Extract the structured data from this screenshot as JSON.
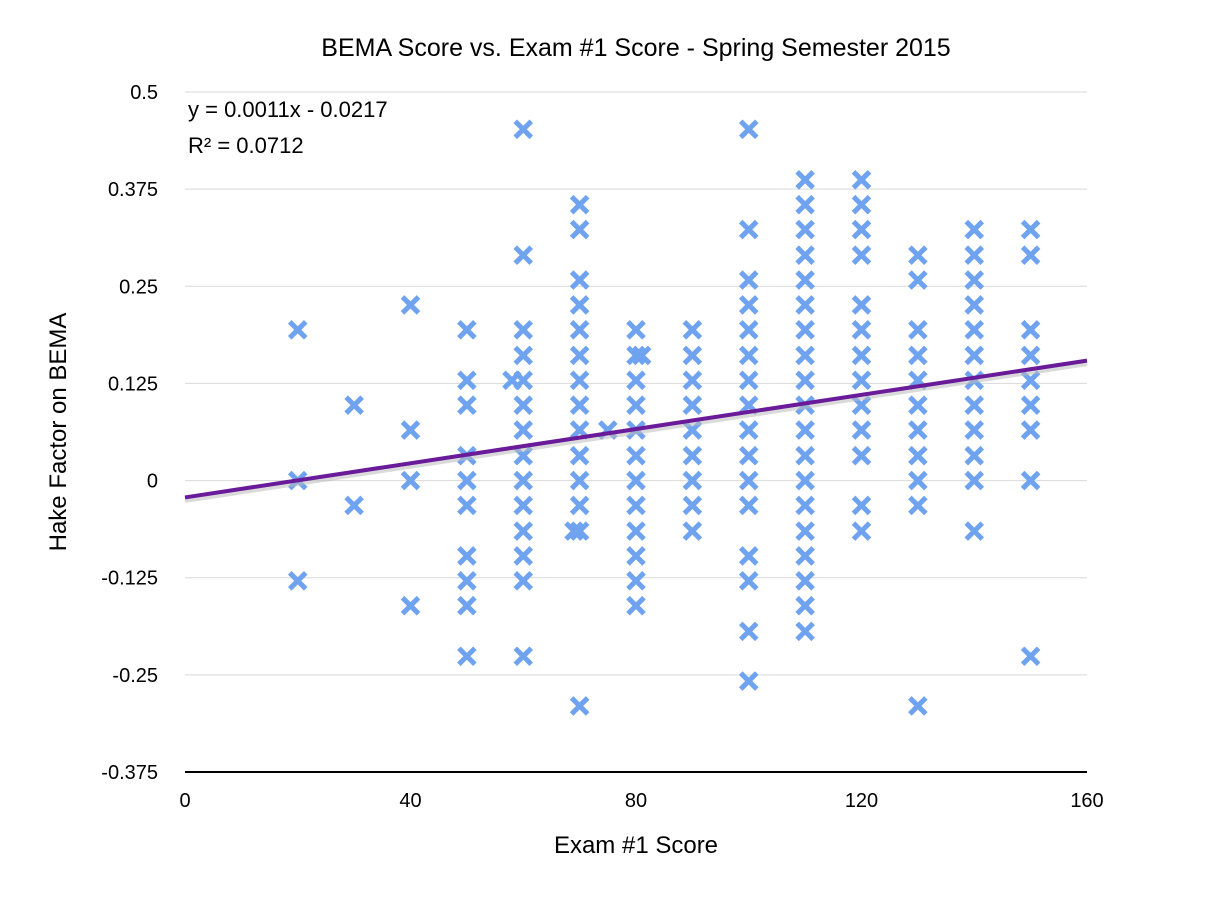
{
  "chart_data": {
    "type": "scatter",
    "title": "BEMA Score vs. Exam #1 Score - Spring Semester 2015",
    "xlabel": "Exam #1 Score",
    "ylabel": "Hake Factor on BEMA",
    "xlim": [
      0,
      160
    ],
    "ylim": [
      -0.375,
      0.5
    ],
    "x_ticks": [
      0,
      40,
      80,
      120,
      160
    ],
    "x_tick_labels": [
      "0",
      "40",
      "80",
      "120",
      "160"
    ],
    "y_ticks": [
      0.5,
      0.375,
      0.25,
      0.125,
      0,
      -0.125,
      -0.25,
      -0.375
    ],
    "y_tick_labels": [
      "0.5",
      "0.375",
      "0.25",
      "0.125",
      "0",
      "-0.125",
      "-0.25",
      "-0.375"
    ],
    "grid": "horizontal",
    "marker": "x",
    "colors": {
      "points": "#6fa3ef",
      "trendline": "#6a1b9a"
    },
    "trendline": {
      "type": "linear",
      "slope": 0.0011,
      "intercept": -0.0217,
      "equation_label": "y = 0.0011x - 0.0217",
      "r2_label": "R² = 0.0712"
    },
    "points": [
      [
        20,
        0.194
      ],
      [
        20,
        0
      ],
      [
        20,
        -0.129
      ],
      [
        30,
        0.097
      ],
      [
        30,
        -0.032
      ],
      [
        40,
        0.226
      ],
      [
        40,
        0.065
      ],
      [
        40,
        0
      ],
      [
        40,
        -0.161
      ],
      [
        50,
        0.194
      ],
      [
        50,
        0.129
      ],
      [
        50,
        0.097
      ],
      [
        50,
        0.032
      ],
      [
        50,
        0
      ],
      [
        50,
        -0.032
      ],
      [
        50,
        -0.097
      ],
      [
        50,
        -0.129
      ],
      [
        50,
        -0.161
      ],
      [
        50,
        -0.226
      ],
      [
        58,
        0.129
      ],
      [
        60,
        0.452
      ],
      [
        60,
        0.29
      ],
      [
        60,
        0.194
      ],
      [
        60,
        0.161
      ],
      [
        60,
        0.129
      ],
      [
        60,
        0.097
      ],
      [
        60,
        0.065
      ],
      [
        60,
        0.032
      ],
      [
        60,
        0
      ],
      [
        60,
        -0.032
      ],
      [
        60,
        -0.065
      ],
      [
        60,
        -0.097
      ],
      [
        60,
        -0.129
      ],
      [
        60,
        -0.226
      ],
      [
        69,
        -0.065
      ],
      [
        70,
        0.355
      ],
      [
        70,
        0.323
      ],
      [
        70,
        0.258
      ],
      [
        70,
        0.226
      ],
      [
        70,
        0.194
      ],
      [
        70,
        0.161
      ],
      [
        70,
        0.129
      ],
      [
        70,
        0.097
      ],
      [
        70,
        0.065
      ],
      [
        70,
        0.032
      ],
      [
        70,
        0
      ],
      [
        70,
        -0.032
      ],
      [
        70,
        -0.065
      ],
      [
        70,
        -0.29
      ],
      [
        75,
        0.065
      ],
      [
        80,
        0.194
      ],
      [
        80,
        0.161
      ],
      [
        80,
        0.129
      ],
      [
        80,
        0.097
      ],
      [
        80,
        0.065
      ],
      [
        80,
        0.032
      ],
      [
        80,
        0
      ],
      [
        80,
        -0.032
      ],
      [
        80,
        -0.065
      ],
      [
        80,
        -0.097
      ],
      [
        80,
        -0.129
      ],
      [
        80,
        -0.161
      ],
      [
        81,
        0.161
      ],
      [
        90,
        0.194
      ],
      [
        90,
        0.161
      ],
      [
        90,
        0.129
      ],
      [
        90,
        0.097
      ],
      [
        90,
        0.065
      ],
      [
        90,
        0.032
      ],
      [
        90,
        0
      ],
      [
        90,
        -0.032
      ],
      [
        90,
        -0.065
      ],
      [
        100,
        0.452
      ],
      [
        100,
        0.323
      ],
      [
        100,
        0.258
      ],
      [
        100,
        0.226
      ],
      [
        100,
        0.194
      ],
      [
        100,
        0.161
      ],
      [
        100,
        0.129
      ],
      [
        100,
        0.097
      ],
      [
        100,
        0.065
      ],
      [
        100,
        0.032
      ],
      [
        100,
        0
      ],
      [
        100,
        -0.032
      ],
      [
        100,
        -0.097
      ],
      [
        100,
        -0.129
      ],
      [
        100,
        -0.194
      ],
      [
        100,
        -0.258
      ],
      [
        110,
        0.387
      ],
      [
        110,
        0.355
      ],
      [
        110,
        0.323
      ],
      [
        110,
        0.29
      ],
      [
        110,
        0.258
      ],
      [
        110,
        0.226
      ],
      [
        110,
        0.194
      ],
      [
        110,
        0.161
      ],
      [
        110,
        0.129
      ],
      [
        110,
        0.097
      ],
      [
        110,
        0.065
      ],
      [
        110,
        0.032
      ],
      [
        110,
        0
      ],
      [
        110,
        -0.032
      ],
      [
        110,
        -0.065
      ],
      [
        110,
        -0.097
      ],
      [
        110,
        -0.129
      ],
      [
        110,
        -0.161
      ],
      [
        110,
        -0.194
      ],
      [
        120,
        0.387
      ],
      [
        120,
        0.355
      ],
      [
        120,
        0.323
      ],
      [
        120,
        0.29
      ],
      [
        120,
        0.226
      ],
      [
        120,
        0.194
      ],
      [
        120,
        0.161
      ],
      [
        120,
        0.129
      ],
      [
        120,
        0.097
      ],
      [
        120,
        0.065
      ],
      [
        120,
        0.032
      ],
      [
        120,
        -0.032
      ],
      [
        120,
        -0.065
      ],
      [
        130,
        0.29
      ],
      [
        130,
        0.258
      ],
      [
        130,
        0.194
      ],
      [
        130,
        0.161
      ],
      [
        130,
        0.129
      ],
      [
        130,
        0.097
      ],
      [
        130,
        0.065
      ],
      [
        130,
        0.032
      ],
      [
        130,
        0
      ],
      [
        130,
        -0.032
      ],
      [
        130,
        -0.29
      ],
      [
        140,
        0.323
      ],
      [
        140,
        0.29
      ],
      [
        140,
        0.258
      ],
      [
        140,
        0.226
      ],
      [
        140,
        0.194
      ],
      [
        140,
        0.161
      ],
      [
        140,
        0.129
      ],
      [
        140,
        0.097
      ],
      [
        140,
        0.065
      ],
      [
        140,
        0.032
      ],
      [
        140,
        0
      ],
      [
        140,
        -0.065
      ],
      [
        150,
        0.323
      ],
      [
        150,
        0.29
      ],
      [
        150,
        0.194
      ],
      [
        150,
        0.161
      ],
      [
        150,
        0.129
      ],
      [
        150,
        0.097
      ],
      [
        150,
        0.065
      ],
      [
        150,
        0
      ],
      [
        150,
        -0.226
      ]
    ]
  }
}
